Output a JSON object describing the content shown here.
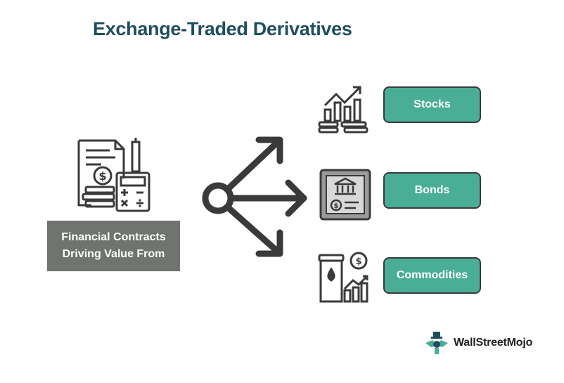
{
  "title": "Exchange-Traded Derivatives",
  "source": {
    "line1": "Financial Contracts",
    "line2": "Driving Value From",
    "icon": "financial-contracts-icon"
  },
  "assets": [
    {
      "label": "Stocks",
      "icon": "stocks-chart-icon"
    },
    {
      "label": "Bonds",
      "icon": "bond-certificate-icon"
    },
    {
      "label": "Commodities",
      "icon": "commodities-oil-icon"
    }
  ],
  "brand": {
    "name": "WallStreetMojo",
    "icon": "wallstreetmojo-logo-icon"
  },
  "colors": {
    "title": "#1f4e5f",
    "box": "#4aae96",
    "label_bg": "#6f746f",
    "ink": "#3a3a3a"
  }
}
